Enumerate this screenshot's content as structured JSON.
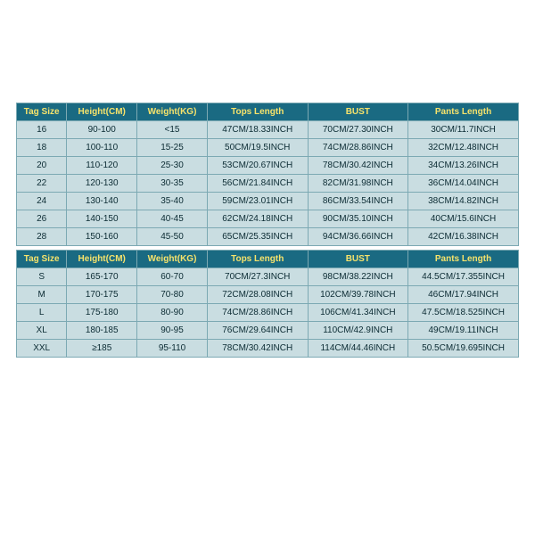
{
  "style": {
    "header_bg": "#1a6a82",
    "header_fg": "#f7e36b",
    "row_bg": "#c9dde1",
    "row_fg": "#0b2b33",
    "border": "#7ca9b3"
  },
  "headers": {
    "tag": "Tag Size",
    "height": "Height(CM)",
    "weight": "Weight(KG)",
    "tops": "Tops Length",
    "bust": "BUST",
    "pants": "Pants Length"
  },
  "kids": [
    {
      "tag": "16",
      "h": "90-100",
      "w": "<15",
      "tops": "47CM/18.33INCH",
      "bust": "70CM/27.30INCH",
      "pants": "30CM/11.7INCH"
    },
    {
      "tag": "18",
      "h": "100-110",
      "w": "15-25",
      "tops": "50CM/19.5INCH",
      "bust": "74CM/28.86INCH",
      "pants": "32CM/12.48INCH"
    },
    {
      "tag": "20",
      "h": "110-120",
      "w": "25-30",
      "tops": "53CM/20.67INCH",
      "bust": "78CM/30.42INCH",
      "pants": "34CM/13.26INCH"
    },
    {
      "tag": "22",
      "h": "120-130",
      "w": "30-35",
      "tops": "56CM/21.84INCH",
      "bust": "82CM/31.98INCH",
      "pants": "36CM/14.04INCH"
    },
    {
      "tag": "24",
      "h": "130-140",
      "w": "35-40",
      "tops": "59CM/23.01INCH",
      "bust": "86CM/33.54INCH",
      "pants": "38CM/14.82INCH"
    },
    {
      "tag": "26",
      "h": "140-150",
      "w": "40-45",
      "tops": "62CM/24.18INCH",
      "bust": "90CM/35.10INCH",
      "pants": "40CM/15.6INCH"
    },
    {
      "tag": "28",
      "h": "150-160",
      "w": "45-50",
      "tops": "65CM/25.35INCH",
      "bust": "94CM/36.66INCH",
      "pants": "42CM/16.38INCH"
    }
  ],
  "adults": [
    {
      "tag": "S",
      "h": "165-170",
      "w": "60-70",
      "tops": "70CM/27.3INCH",
      "bust": "98CM/38.22INCH",
      "pants": "44.5CM/17.355INCH"
    },
    {
      "tag": "M",
      "h": "170-175",
      "w": "70-80",
      "tops": "72CM/28.08INCH",
      "bust": "102CM/39.78INCH",
      "pants": "46CM/17.94INCH"
    },
    {
      "tag": "L",
      "h": "175-180",
      "w": "80-90",
      "tops": "74CM/28.86INCH",
      "bust": "106CM/41.34INCH",
      "pants": "47.5CM/18.525INCH"
    },
    {
      "tag": "XL",
      "h": "180-185",
      "w": "90-95",
      "tops": "76CM/29.64INCH",
      "bust": "110CM/42.9INCH",
      "pants": "49CM/19.11INCH"
    },
    {
      "tag": "XXL",
      "h": "≥185",
      "w": "95-110",
      "tops": "78CM/30.42INCH",
      "bust": "114CM/44.46INCH",
      "pants": "50.5CM/19.695INCH"
    }
  ]
}
